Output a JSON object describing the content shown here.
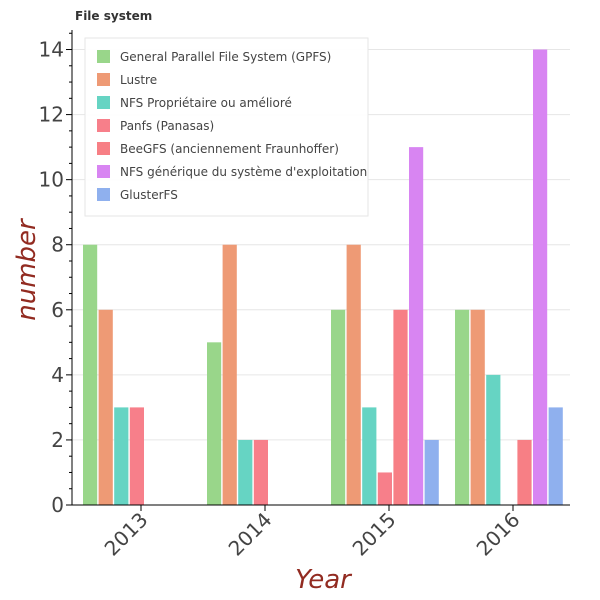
{
  "chart_data": {
    "type": "bar",
    "title": "File system",
    "xlabel": "Year",
    "ylabel": "number",
    "categories": [
      "2013",
      "2014",
      "2015",
      "2016"
    ],
    "ylim": [
      0,
      14.6
    ],
    "yticks": [
      0,
      2,
      4,
      6,
      8,
      10,
      12,
      14
    ],
    "grid": true,
    "legend_position": "top-left",
    "series": [
      {
        "name": "General Parallel File System (GPFS)",
        "color": "#99d68a",
        "values": [
          8,
          5,
          6,
          6
        ]
      },
      {
        "name": "Lustre",
        "color": "#ee9a75",
        "values": [
          6,
          8,
          8,
          6
        ]
      },
      {
        "name": "NFS Propriétaire ou amélioré",
        "color": "#66d4c3",
        "values": [
          3,
          2,
          3,
          4
        ]
      },
      {
        "name": "Panfs (Panasas)",
        "color": "#f77f8a",
        "values": [
          3,
          2,
          1,
          null
        ]
      },
      {
        "name": "BeeGFS (anciennement Fraunhoffer)",
        "color": "#f77f85",
        "values": [
          null,
          null,
          6,
          2
        ]
      },
      {
        "name": "NFS générique du système d'exploitation",
        "color": "#d885f2",
        "values": [
          null,
          null,
          11,
          14
        ]
      },
      {
        "name": "GlusterFS",
        "color": "#8fb0ee",
        "values": [
          null,
          null,
          2,
          3
        ]
      }
    ]
  }
}
